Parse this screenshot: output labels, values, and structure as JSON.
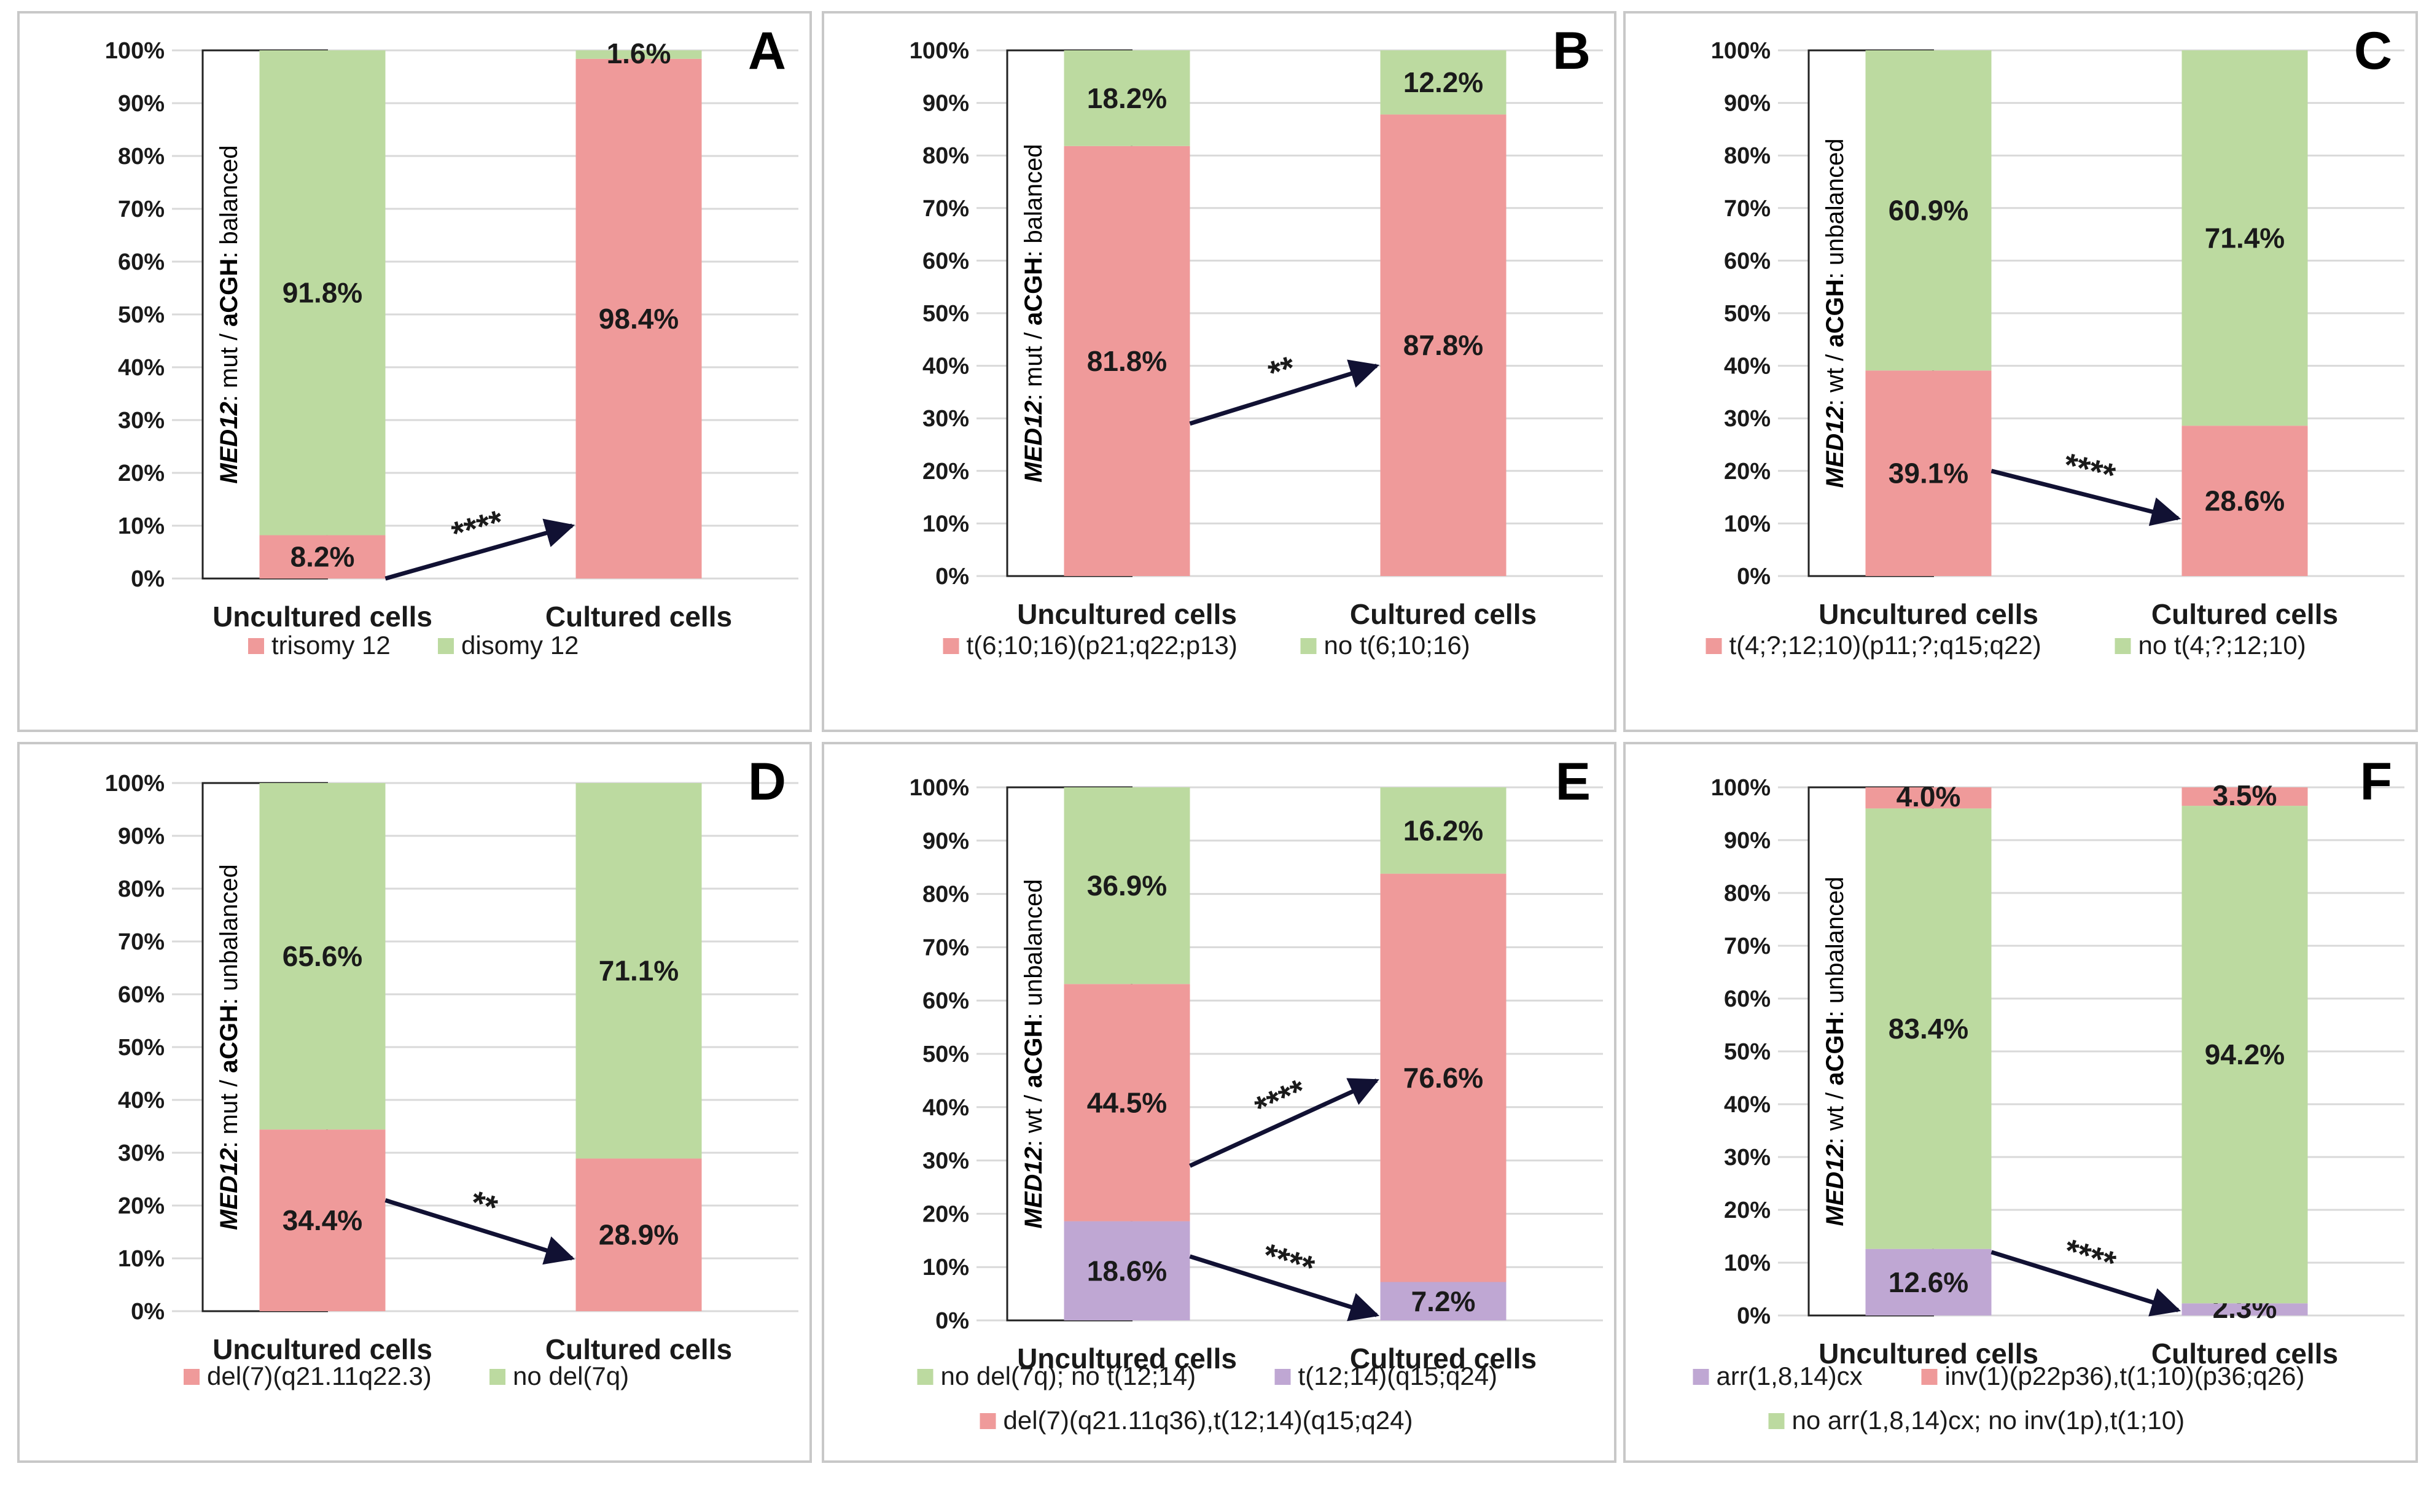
{
  "y_ticks": [
    "0%",
    "10%",
    "20%",
    "30%",
    "40%",
    "50%",
    "60%",
    "70%",
    "80%",
    "90%",
    "100%"
  ],
  "colors": {
    "pink": "#ef9a9a",
    "green": "#bcdaa0",
    "purple": "#bfa7d3",
    "arrow": "#111133"
  },
  "chart_data": [
    {
      "panel": "A",
      "type": "bar",
      "stacked": true,
      "ylim": [
        0,
        100
      ],
      "categories": [
        "Uncultured cells",
        "Cultured cells"
      ],
      "side_label": {
        "gene": "MED12",
        "status": ": mut",
        "sep": "/",
        "method": "aCGH",
        "result": ": balanced"
      },
      "series": [
        {
          "name": "trisomy 12",
          "color": "pink",
          "values": [
            8.2,
            98.4
          ],
          "labels": [
            "8.2%",
            "98.4%"
          ]
        },
        {
          "name": "disomy 12",
          "color": "green",
          "values": [
            91.8,
            1.6
          ],
          "labels": [
            "91.8%",
            "1.6%"
          ]
        }
      ],
      "annotations": [
        {
          "from_bar": 0,
          "from_value": 0,
          "to_bar": 1,
          "to_value": 10,
          "text": "****"
        }
      ],
      "legend_rows": [
        [
          "trisomy 12",
          "disomy 12"
        ]
      ]
    },
    {
      "panel": "B",
      "type": "bar",
      "stacked": true,
      "ylim": [
        0,
        100
      ],
      "categories": [
        "Uncultured cells",
        "Cultured cells"
      ],
      "side_label": {
        "gene": "MED12",
        "status": ": mut",
        "sep": "/",
        "method": "aCGH",
        "result": ": balanced"
      },
      "series": [
        {
          "name": "t(6;10;16)(p21;q22;p13)",
          "color": "pink",
          "values": [
            81.8,
            87.8
          ],
          "labels": [
            "81.8%",
            "87.8%"
          ]
        },
        {
          "name": "no t(6;10;16)",
          "color": "green",
          "values": [
            18.2,
            12.2
          ],
          "labels": [
            "18.2%",
            "12.2%"
          ]
        }
      ],
      "annotations": [
        {
          "from_bar": 0,
          "from_value": 29,
          "to_bar": 1,
          "to_value": 40,
          "text": "**"
        }
      ],
      "legend_rows": [
        [
          "t(6;10;16)(p21;q22;p13)",
          "no t(6;10;16)"
        ]
      ]
    },
    {
      "panel": "C",
      "type": "bar",
      "stacked": true,
      "ylim": [
        0,
        100
      ],
      "categories": [
        "Uncultured cells",
        "Cultured cells"
      ],
      "side_label": {
        "gene": "MED12",
        "status": ": wt",
        "sep": "/",
        "method": "aCGH",
        "result": ": unbalanced"
      },
      "series": [
        {
          "name": "t(4;?;12;10)(p11;?;q15;q22)",
          "color": "pink",
          "values": [
            39.1,
            28.6
          ],
          "labels": [
            "39.1%",
            "28.6%"
          ]
        },
        {
          "name": "no t(4;?;12;10)",
          "color": "green",
          "values": [
            60.9,
            71.4
          ],
          "labels": [
            "60.9%",
            "71.4%"
          ]
        }
      ],
      "annotations": [
        {
          "from_bar": 0,
          "from_value": 20,
          "to_bar": 1,
          "to_value": 11,
          "text": "****"
        }
      ],
      "legend_rows": [
        [
          "t(4;?;12;10)(p11;?;q15;q22)",
          "no t(4;?;12;10)"
        ]
      ]
    },
    {
      "panel": "D",
      "type": "bar",
      "stacked": true,
      "ylim": [
        0,
        100
      ],
      "categories": [
        "Uncultured cells",
        "Cultured cells"
      ],
      "side_label": {
        "gene": "MED12",
        "status": ": mut",
        "sep": "/",
        "method": "aCGH",
        "result": ": unbalanced"
      },
      "series": [
        {
          "name": "del(7)(q21.11q22.3)",
          "color": "pink",
          "values": [
            34.4,
            28.9
          ],
          "labels": [
            "34.4%",
            "28.9%"
          ]
        },
        {
          "name": "no del(7q)",
          "color": "green",
          "values": [
            65.6,
            71.1
          ],
          "labels": [
            "65.6%",
            "71.1%"
          ]
        }
      ],
      "annotations": [
        {
          "from_bar": 0,
          "from_value": 21,
          "to_bar": 1,
          "to_value": 10,
          "text": "**"
        }
      ],
      "legend_rows": [
        [
          "del(7)(q21.11q22.3)",
          "no del(7q)"
        ]
      ]
    },
    {
      "panel": "E",
      "type": "bar",
      "stacked": true,
      "ylim": [
        0,
        100
      ],
      "categories": [
        "Uncultured cells",
        "Cultured cells"
      ],
      "side_label": {
        "gene": "MED12",
        "status": ": wt",
        "sep": "/",
        "method": "aCGH",
        "result": ": unbalanced"
      },
      "series": [
        {
          "name": "t(12;14)(q15;q24)",
          "color": "purple",
          "values": [
            18.6,
            7.2
          ],
          "labels": [
            "18.6%",
            "7.2%"
          ]
        },
        {
          "name": "del(7)(q21.11q36),t(12;14)(q15;q24)",
          "color": "pink",
          "values": [
            44.5,
            76.6
          ],
          "labels": [
            "44.5%",
            "76.6%"
          ]
        },
        {
          "name": "no del(7q); no t(12;14)",
          "color": "green",
          "values": [
            36.9,
            16.2
          ],
          "labels": [
            "36.9%",
            "16.2%"
          ]
        }
      ],
      "annotations": [
        {
          "from_bar": 0,
          "from_value": 29,
          "to_bar": 1,
          "to_value": 45,
          "text": "****"
        },
        {
          "from_bar": 0,
          "from_value": 12,
          "to_bar": 1,
          "to_value": 1,
          "text": "****"
        }
      ],
      "legend_rows": [
        [
          "no del(7q); no t(12;14)",
          "t(12;14)(q15;q24)"
        ],
        [
          "del(7)(q21.11q36),t(12;14)(q15;q24)"
        ]
      ]
    },
    {
      "panel": "F",
      "type": "bar",
      "stacked": true,
      "ylim": [
        0,
        100
      ],
      "categories": [
        "Uncultured cells",
        "Cultured cells"
      ],
      "side_label": {
        "gene": "MED12",
        "status": ": wt",
        "sep": "/",
        "method": "aCGH",
        "result": ": unbalanced"
      },
      "series": [
        {
          "name": "arr(1,8,14)cx",
          "color": "purple",
          "values": [
            12.6,
            2.3
          ],
          "labels": [
            "12.6%",
            "2.3%"
          ]
        },
        {
          "name": "no arr(1,8,14)cx;  no inv(1p),t(1;10)",
          "color": "green",
          "values": [
            83.4,
            94.2
          ],
          "labels": [
            "83.4%",
            "94.2%"
          ]
        },
        {
          "name": "inv(1)(p22p36),t(1;10)(p36;q26)",
          "color": "pink",
          "values": [
            4.0,
            3.5
          ],
          "labels": [
            "4.0%",
            "3.5%"
          ]
        }
      ],
      "annotations": [
        {
          "from_bar": 0,
          "from_value": 12,
          "to_bar": 1,
          "to_value": 1,
          "text": "****"
        }
      ],
      "legend_rows": [
        [
          "arr(1,8,14)cx",
          "inv(1)(p22p36),t(1;10)(p36;q26)"
        ],
        [
          "no arr(1,8,14)cx;  no inv(1p),t(1;10)"
        ]
      ]
    }
  ]
}
